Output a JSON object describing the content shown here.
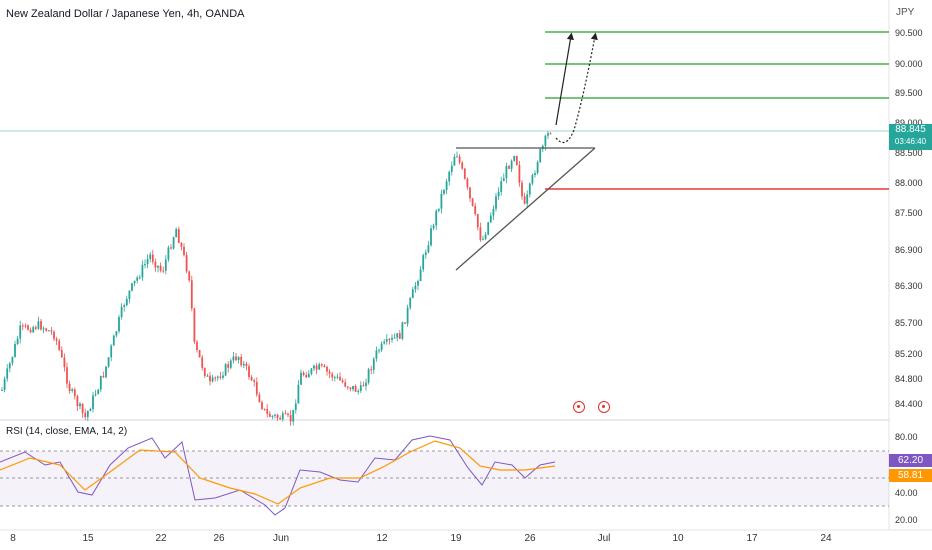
{
  "header": {
    "title": "New Zealand Dollar / Japanese Yen, 4h, OANDA",
    "currency": "JPY"
  },
  "price_axis": {
    "ticks": [
      "90.500",
      "90.000",
      "89.500",
      "89.000",
      "88.500",
      "88.000",
      "87.500",
      "86.900",
      "86.300",
      "85.700",
      "85.200",
      "84.800",
      "84.400"
    ]
  },
  "current_price": {
    "value": "88.845",
    "countdown": "03:46:40",
    "color": "#26a69a"
  },
  "rsi": {
    "title": "RSI (14, close, EMA, 14, 2)",
    "ticks": [
      "80.00",
      "40.00",
      "20.00"
    ],
    "value_badge": "62.20",
    "ema_badge": "58.81",
    "line_color": "#7e57c2",
    "ema_color": "#ff9800"
  },
  "x_axis": {
    "ticks": [
      "8",
      "15",
      "22",
      "26",
      "Jun",
      "12",
      "19",
      "26",
      "Jul",
      "10",
      "17",
      "24"
    ]
  },
  "levels": {
    "green_color": "#4caf50",
    "red_color": "#e53935",
    "green": [
      "90.500",
      "90.000",
      "89.500"
    ],
    "red": "87.600"
  },
  "colors": {
    "up": "#26a69a",
    "down": "#ef5350"
  }
}
